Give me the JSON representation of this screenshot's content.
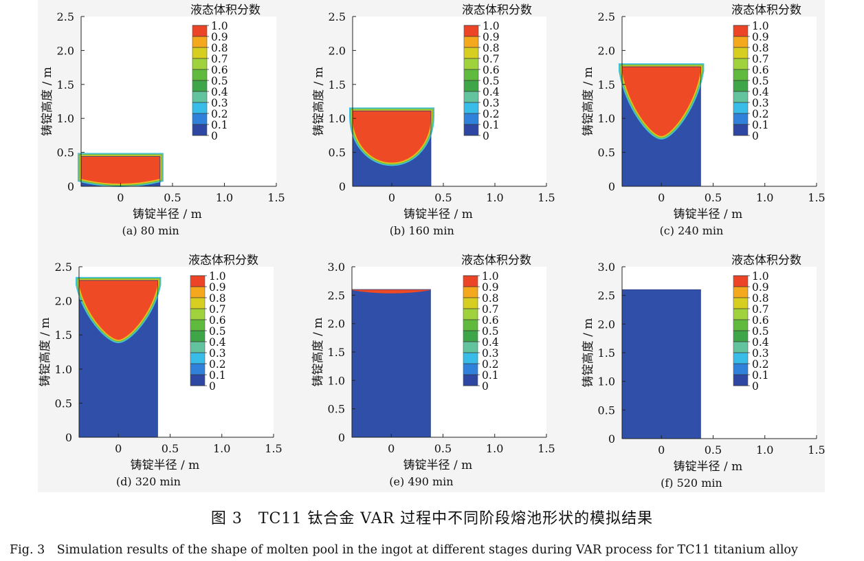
{
  "figure": {
    "caption_cn": "图 3　TC11 钛合金 VAR 过程中不同阶段熔池形状的模拟结果",
    "caption_en": "Fig. 3　Simulation results of the shape of molten pool in the ingot at different stages during VAR process for TC11 titanium alloy"
  },
  "colors": {
    "solid": "#2f4fa8",
    "liquid": "#ee4a26",
    "colorbar": [
      "#2e47a3",
      "#2f81d9",
      "#39bde8",
      "#63c39f",
      "#3ea548",
      "#5fba3e",
      "#9fd23c",
      "#d6cf22",
      "#f3a81d",
      "#ec4426"
    ]
  },
  "chart_data": [
    {
      "type": "heatmap",
      "subtitle": "(a)  80 min",
      "xlabel": "铸锭半径 / m",
      "ylabel": "铸锭高度 / m",
      "xlim": [
        -0.38,
        1.5
      ],
      "ylim": [
        0,
        2.5
      ],
      "xticks": [
        {
          "value": 0,
          "label": "0"
        },
        {
          "value": 0.5,
          "label": "0.5"
        },
        {
          "value": 1.0,
          "label": "1.0"
        },
        {
          "value": 1.5,
          "label": "1.5"
        }
      ],
      "yticks": [
        {
          "value": 0,
          "label": "0"
        },
        {
          "value": 0.5,
          "label": "0.5"
        },
        {
          "value": 1.0,
          "label": "1.0"
        },
        {
          "value": 1.5,
          "label": "1.5"
        },
        {
          "value": 2.0,
          "label": "2.0"
        },
        {
          "value": 2.5,
          "label": "2.5"
        }
      ],
      "ingot_radius": 0.38,
      "ingot_height": 0.44,
      "pool_bottom": 0.05,
      "pool_shape": "flat",
      "colorbar_title": "液态体积分数",
      "colorbar_labels": [
        "1.0",
        "0.9",
        "0.8",
        "0.7",
        "0.6",
        "0.5",
        "0.4",
        "0.3",
        "0.2",
        "0.1",
        "0"
      ]
    },
    {
      "type": "heatmap",
      "subtitle": "(b)  160 min",
      "xlabel": "铸锭半径 / m",
      "ylabel": "铸锭高度 / m",
      "xlim": [
        -0.38,
        1.5
      ],
      "ylim": [
        0,
        2.5
      ],
      "xticks": [
        {
          "value": 0,
          "label": "0"
        },
        {
          "value": 0.5,
          "label": "0.5"
        },
        {
          "value": 1.0,
          "label": "1.0"
        },
        {
          "value": 1.5,
          "label": "1.5"
        }
      ],
      "yticks": [
        {
          "value": 0,
          "label": "0"
        },
        {
          "value": 0.5,
          "label": "0.5"
        },
        {
          "value": 1.0,
          "label": "1.0"
        },
        {
          "value": 1.5,
          "label": "1.5"
        },
        {
          "value": 2.0,
          "label": "2.0"
        },
        {
          "value": 2.5,
          "label": "2.5"
        }
      ],
      "ingot_radius": 0.38,
      "ingot_height": 1.11,
      "pool_bottom": 0.35,
      "pool_shape": "bowl",
      "colorbar_title": "液态体积分数",
      "colorbar_labels": [
        "1.0",
        "0.9",
        "0.8",
        "0.7",
        "0.6",
        "0.5",
        "0.4",
        "0.3",
        "0.2",
        "0.1",
        "0"
      ]
    },
    {
      "type": "heatmap",
      "subtitle": "(c)  240 min",
      "xlabel": "铸锭半径 / m",
      "ylabel": "铸锭高度 / m",
      "xlim": [
        -0.38,
        1.5
      ],
      "ylim": [
        0,
        2.5
      ],
      "xticks": [
        {
          "value": 0,
          "label": "0"
        },
        {
          "value": 0.5,
          "label": "0.5"
        },
        {
          "value": 1.0,
          "label": "1.0"
        },
        {
          "value": 1.5,
          "label": "1.5"
        }
      ],
      "yticks": [
        {
          "value": 0,
          "label": "0"
        },
        {
          "value": 0.5,
          "label": "0.5"
        },
        {
          "value": 1.0,
          "label": "1.0"
        },
        {
          "value": 1.5,
          "label": "1.5"
        },
        {
          "value": 2.0,
          "label": "2.0"
        },
        {
          "value": 2.5,
          "label": "2.5"
        }
      ],
      "ingot_radius": 0.38,
      "ingot_height": 1.76,
      "pool_bottom": 0.74,
      "pool_shape": "cone",
      "colorbar_title": "液态体积分数",
      "colorbar_labels": [
        "1.0",
        "0.9",
        "0.8",
        "0.7",
        "0.6",
        "0.5",
        "0.4",
        "0.3",
        "0.2",
        "0.1",
        "0"
      ]
    },
    {
      "type": "heatmap",
      "subtitle": "(d)  320 min",
      "xlabel": "铸锭半径 / m",
      "ylabel": "铸锭高度 / m",
      "xlim": [
        -0.38,
        1.5
      ],
      "ylim": [
        0,
        2.5
      ],
      "xticks": [
        {
          "value": 0,
          "label": "0"
        },
        {
          "value": 0.5,
          "label": "0.5"
        },
        {
          "value": 1.0,
          "label": "1.0"
        },
        {
          "value": 1.5,
          "label": "1.5"
        }
      ],
      "yticks": [
        {
          "value": 0,
          "label": "0"
        },
        {
          "value": 0.5,
          "label": "0.5"
        },
        {
          "value": 1.0,
          "label": "1.0"
        },
        {
          "value": 1.5,
          "label": "1.5"
        },
        {
          "value": 2.0,
          "label": "2.0"
        },
        {
          "value": 2.5,
          "label": "2.5"
        }
      ],
      "ingot_radius": 0.38,
      "ingot_height": 2.3,
      "pool_bottom": 1.43,
      "pool_shape": "cone",
      "colorbar_title": "液态体积分数",
      "colorbar_labels": [
        "1.0",
        "0.9",
        "0.8",
        "0.7",
        "0.6",
        "0.5",
        "0.4",
        "0.3",
        "0.2",
        "0.1",
        "0"
      ]
    },
    {
      "type": "heatmap",
      "subtitle": "(e)  490 min",
      "xlabel": "铸锭半径 / m",
      "ylabel": "铸锭高度 / m",
      "xlim": [
        -0.38,
        1.5
      ],
      "ylim": [
        0,
        3.0
      ],
      "xticks": [
        {
          "value": 0,
          "label": "0"
        },
        {
          "value": 0.5,
          "label": "0.5"
        },
        {
          "value": 1.0,
          "label": "1.0"
        },
        {
          "value": 1.5,
          "label": "1.5"
        }
      ],
      "yticks": [
        {
          "value": 0,
          "label": "0"
        },
        {
          "value": 0.5,
          "label": "0.5"
        },
        {
          "value": 1.0,
          "label": "1.0"
        },
        {
          "value": 1.5,
          "label": "1.5"
        },
        {
          "value": 2.0,
          "label": "2.0"
        },
        {
          "value": 2.5,
          "label": "2.5"
        },
        {
          "value": 3.0,
          "label": "3.0"
        }
      ],
      "ingot_radius": 0.38,
      "ingot_height": 2.6,
      "pool_bottom": 2.51,
      "pool_shape": "shallow",
      "colorbar_title": "液态体积分数",
      "colorbar_labels": [
        "1.0",
        "0.9",
        "0.8",
        "0.7",
        "0.6",
        "0.5",
        "0.4",
        "0.3",
        "0.2",
        "0.1",
        "0"
      ]
    },
    {
      "type": "heatmap",
      "subtitle": "(f)  520 min",
      "xlabel": "铸锭半径 / m",
      "ylabel": "铸锭高度 / m",
      "xlim": [
        -0.38,
        1.5
      ],
      "ylim": [
        0,
        3.0
      ],
      "xticks": [
        {
          "value": 0,
          "label": "0"
        },
        {
          "value": 0.5,
          "label": "0.5"
        },
        {
          "value": 1.0,
          "label": "1.0"
        },
        {
          "value": 1.5,
          "label": "1.5"
        }
      ],
      "yticks": [
        {
          "value": 0,
          "label": "0"
        },
        {
          "value": 0.5,
          "label": "0.5"
        },
        {
          "value": 1.0,
          "label": "1.0"
        },
        {
          "value": 1.5,
          "label": "1.5"
        },
        {
          "value": 2.0,
          "label": "2.0"
        },
        {
          "value": 2.5,
          "label": "2.5"
        },
        {
          "value": 3.0,
          "label": "3.0"
        }
      ],
      "ingot_radius": 0.38,
      "ingot_height": 2.6,
      "pool_bottom": null,
      "pool_shape": "none",
      "colorbar_title": "液态体积分数",
      "colorbar_labels": [
        "1.0",
        "0.9",
        "0.8",
        "0.7",
        "0.6",
        "0.5",
        "0.4",
        "0.3",
        "0.2",
        "0.1",
        "0"
      ]
    }
  ]
}
